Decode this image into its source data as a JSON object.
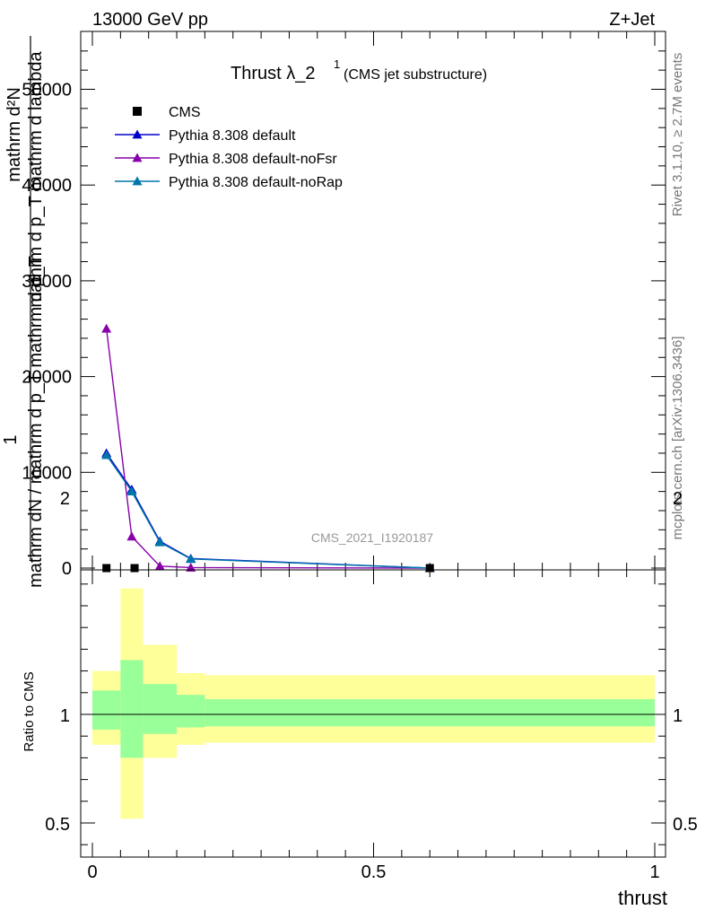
{
  "header": {
    "left": "13000 GeV pp",
    "right": "Z+Jet"
  },
  "side_labels": {
    "rivet": "Rivet 3.1.10, ≥ 2.7M events",
    "mcplots": "mcplots.cern.ch [arXiv:1306.3436]"
  },
  "chart_data": [
    {
      "type": "line",
      "title": "Thrust λ_2",
      "title_sup": "1",
      "title_suffix": "(CMS jet substructure)",
      "watermark": "CMS_2021_I1920187",
      "ylabel_lines": [
        "mathrm d p_T mathrm d lambda",
        "mathrm d²N",
        "1",
        "mathrm dN / mathrm d p_T mathrm d p_T"
      ],
      "xlim": [
        0,
        1
      ],
      "ylim": [
        0,
        56000
      ],
      "yticks": [
        0,
        10000,
        20000,
        30000,
        40000,
        50000
      ],
      "ytick_labels": [
        "0",
        "10000",
        "20000",
        "30000",
        "40000",
        "50000"
      ],
      "legend_placement": "top-left",
      "series": [
        {
          "name": "CMS",
          "marker": "square",
          "color": "#000000",
          "x": [
            0.025,
            0.075,
            0.6
          ],
          "y": [
            0,
            0,
            0
          ]
        },
        {
          "name": "Pythia 8.308 default",
          "marker": "triangle",
          "color": "#0000cc",
          "x": [
            0.025,
            0.07,
            0.12,
            0.175,
            0.6
          ],
          "y": [
            12000,
            8200,
            2800,
            1000,
            0
          ]
        },
        {
          "name": "Pythia 8.308 default-noFsr",
          "marker": "triangle",
          "color": "#8800aa",
          "x": [
            0.025,
            0.07,
            0.12,
            0.175,
            0.6
          ],
          "y": [
            25000,
            3300,
            200,
            50,
            0
          ]
        },
        {
          "name": "Pythia 8.308 default-noRap",
          "marker": "triangle",
          "color": "#0077aa",
          "x": [
            0.025,
            0.07,
            0.12,
            0.175,
            0.6
          ],
          "y": [
            11800,
            8000,
            2700,
            950,
            0
          ]
        }
      ]
    },
    {
      "type": "area",
      "ylabel": "Ratio to CMS",
      "xlabel": "thrust",
      "xlim": [
        0,
        1
      ],
      "ylim": [
        0.35,
        2.35
      ],
      "xticks": [
        0,
        0.5,
        1
      ],
      "xtick_labels": [
        "0",
        "0.5",
        "1"
      ],
      "yticks": [
        0.5,
        1,
        2
      ],
      "ytick_labels": [
        "0.5",
        "1",
        "2"
      ],
      "reference_line": 1,
      "bins": [
        {
          "x0": 0.0,
          "x1": 0.05,
          "yellow": [
            0.86,
            1.2
          ],
          "green": [
            0.93,
            1.11
          ]
        },
        {
          "x0": 0.05,
          "x1": 0.09,
          "yellow": [
            0.52,
            1.58
          ],
          "green": [
            0.8,
            1.25
          ]
        },
        {
          "x0": 0.09,
          "x1": 0.15,
          "yellow": [
            0.8,
            1.32
          ],
          "green": [
            0.91,
            1.14
          ]
        },
        {
          "x0": 0.15,
          "x1": 0.2,
          "yellow": [
            0.86,
            1.19
          ],
          "green": [
            0.94,
            1.09
          ]
        },
        {
          "x0": 0.2,
          "x1": 1.0,
          "yellow": [
            0.87,
            1.18
          ],
          "green": [
            0.945,
            1.07
          ]
        }
      ],
      "colors": {
        "yellow": "#ffff99",
        "green": "#99ff99"
      }
    }
  ]
}
